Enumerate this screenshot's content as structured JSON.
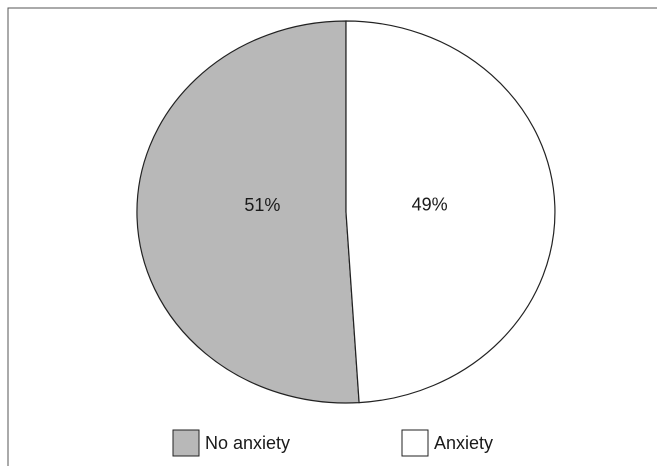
{
  "chart_data": {
    "type": "pie",
    "slices": [
      {
        "label": "No anxiety",
        "value": 51,
        "display": "51%",
        "color": "#b8b8b8"
      },
      {
        "label": "Anxiety",
        "value": 49,
        "display": "49%",
        "color": "#ffffff"
      }
    ],
    "legend_position": "bottom",
    "start": "top",
    "direction": "counterclockwise"
  }
}
